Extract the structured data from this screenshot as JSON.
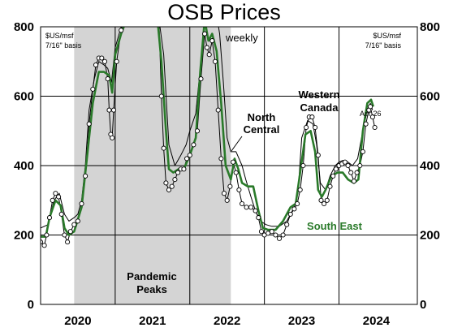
{
  "chart_data": {
    "type": "line",
    "title": "OSB Prices",
    "unit_left": [
      "$US/msf",
      "7/16\" basis"
    ],
    "unit_right": [
      "$US/msf",
      "7/16\" basis"
    ],
    "frequency_label": "weekly",
    "ylim": [
      0,
      800
    ],
    "y_ticks": [
      "0",
      "200",
      "400",
      "600",
      "800"
    ],
    "xlim": [
      2019.5,
      2024.55
    ],
    "x_ticks": [
      {
        "label": "2020",
        "pos": 2020.0
      },
      {
        "label": "2021",
        "pos": 2021.0
      },
      {
        "label": "2022",
        "pos": 2022.0
      },
      {
        "label": "2023",
        "pos": 2023.0
      },
      {
        "label": "2024",
        "pos": 2024.0
      }
    ],
    "year_boundaries": [
      2020.5,
      2021.5,
      2022.5,
      2023.5
    ],
    "shaded_region": {
      "from": 2019.95,
      "to": 2022.05,
      "label": [
        "Pandemic",
        "Peaks"
      ]
    },
    "annotations": {
      "western_canada": [
        "Western",
        "Canada"
      ],
      "north_central": [
        "North",
        "Central"
      ],
      "south_east": "South East",
      "apr26": "Apr 26"
    },
    "series": [
      {
        "name": "North Central",
        "color": "#000000",
        "points": [
          [
            2019.5,
            220
          ],
          [
            2019.6,
            230
          ],
          [
            2019.68,
            300
          ],
          [
            2019.75,
            320
          ],
          [
            2019.82,
            260
          ],
          [
            2019.88,
            240
          ],
          [
            2019.95,
            250
          ],
          [
            2020.0,
            260
          ],
          [
            2020.05,
            300
          ],
          [
            2020.1,
            400
          ],
          [
            2020.15,
            560
          ],
          [
            2020.22,
            650
          ],
          [
            2020.28,
            700
          ],
          [
            2020.35,
            690
          ],
          [
            2020.4,
            680
          ],
          [
            2020.45,
            640
          ],
          [
            2020.5,
            740
          ],
          [
            2020.58,
            800
          ],
          [
            2020.65,
            830
          ],
          [
            2020.72,
            870
          ],
          [
            2020.8,
            900
          ],
          [
            2021.05,
            880
          ],
          [
            2021.15,
            720
          ],
          [
            2021.22,
            460
          ],
          [
            2021.3,
            400
          ],
          [
            2021.38,
            430
          ],
          [
            2021.45,
            460
          ],
          [
            2021.5,
            500
          ],
          [
            2021.58,
            550
          ],
          [
            2021.65,
            700
          ],
          [
            2021.72,
            840
          ],
          [
            2021.78,
            800
          ],
          [
            2021.84,
            860
          ],
          [
            2021.9,
            780
          ],
          [
            2021.95,
            640
          ],
          [
            2022.0,
            480
          ],
          [
            2022.05,
            440
          ],
          [
            2022.12,
            440
          ],
          [
            2022.2,
            400
          ],
          [
            2022.25,
            360
          ],
          [
            2022.32,
            310
          ],
          [
            2022.38,
            270
          ],
          [
            2022.45,
            240
          ],
          [
            2022.52,
            230
          ],
          [
            2022.6,
            225
          ],
          [
            2022.7,
            225
          ],
          [
            2022.8,
            240
          ],
          [
            2022.9,
            280
          ],
          [
            2022.95,
            320
          ],
          [
            2023.0,
            480
          ],
          [
            2023.08,
            530
          ],
          [
            2023.15,
            520
          ],
          [
            2023.2,
            460
          ],
          [
            2023.25,
            350
          ],
          [
            2023.32,
            330
          ],
          [
            2023.38,
            370
          ],
          [
            2023.45,
            400
          ],
          [
            2023.5,
            410
          ],
          [
            2023.55,
            415
          ],
          [
            2023.62,
            410
          ],
          [
            2023.68,
            400
          ],
          [
            2023.75,
            420
          ],
          [
            2023.82,
            500
          ],
          [
            2023.88,
            560
          ],
          [
            2023.92,
            580
          ],
          [
            2023.95,
            560
          ]
        ]
      },
      {
        "name": "South East",
        "color": "#2a7a2a",
        "points": [
          [
            2019.5,
            195
          ],
          [
            2019.57,
            195
          ],
          [
            2019.62,
            250
          ],
          [
            2019.7,
            300
          ],
          [
            2019.77,
            285
          ],
          [
            2019.82,
            220
          ],
          [
            2019.88,
            200
          ],
          [
            2019.95,
            210
          ],
          [
            2020.05,
            280
          ],
          [
            2020.12,
            420
          ],
          [
            2020.2,
            580
          ],
          [
            2020.28,
            670
          ],
          [
            2020.35,
            670
          ],
          [
            2020.42,
            660
          ],
          [
            2020.46,
            610
          ],
          [
            2020.5,
            720
          ],
          [
            2020.58,
            780
          ],
          [
            2020.65,
            820
          ],
          [
            2020.72,
            860
          ],
          [
            2020.8,
            880
          ],
          [
            2021.05,
            860
          ],
          [
            2021.12,
            700
          ],
          [
            2021.18,
            500
          ],
          [
            2021.22,
            390
          ],
          [
            2021.28,
            380
          ],
          [
            2021.35,
            390
          ],
          [
            2021.42,
            390
          ],
          [
            2021.5,
            430
          ],
          [
            2021.58,
            480
          ],
          [
            2021.64,
            670
          ],
          [
            2021.7,
            820
          ],
          [
            2021.75,
            760
          ],
          [
            2021.8,
            780
          ],
          [
            2021.86,
            730
          ],
          [
            2021.92,
            580
          ],
          [
            2021.98,
            400
          ],
          [
            2022.05,
            360
          ],
          [
            2022.1,
            420
          ],
          [
            2022.15,
            390
          ],
          [
            2022.2,
            350
          ],
          [
            2022.28,
            340
          ],
          [
            2022.35,
            340
          ],
          [
            2022.42,
            270
          ],
          [
            2022.48,
            220
          ],
          [
            2022.55,
            215
          ],
          [
            2022.65,
            215
          ],
          [
            2022.75,
            240
          ],
          [
            2022.85,
            280
          ],
          [
            2022.92,
            290
          ],
          [
            2022.98,
            380
          ],
          [
            2023.05,
            490
          ],
          [
            2023.12,
            500
          ],
          [
            2023.18,
            440
          ],
          [
            2023.22,
            330
          ],
          [
            2023.27,
            310
          ],
          [
            2023.32,
            330
          ],
          [
            2023.4,
            370
          ],
          [
            2023.48,
            380
          ],
          [
            2023.55,
            380
          ],
          [
            2023.62,
            360
          ],
          [
            2023.7,
            350
          ],
          [
            2023.76,
            360
          ],
          [
            2023.82,
            500
          ],
          [
            2023.88,
            580
          ],
          [
            2023.93,
            590
          ],
          [
            2023.96,
            570
          ]
        ]
      },
      {
        "name": "Western Canada",
        "color": "#000000",
        "marker": "circle",
        "points": [
          [
            2019.5,
            180
          ],
          [
            2019.55,
            170
          ],
          [
            2019.58,
            200
          ],
          [
            2019.62,
            250
          ],
          [
            2019.66,
            300
          ],
          [
            2019.7,
            320
          ],
          [
            2019.74,
            310
          ],
          [
            2019.78,
            260
          ],
          [
            2019.82,
            200
          ],
          [
            2019.86,
            180
          ],
          [
            2019.9,
            210
          ],
          [
            2019.95,
            230
          ],
          [
            2020.0,
            240
          ],
          [
            2020.05,
            290
          ],
          [
            2020.1,
            370
          ],
          [
            2020.15,
            520
          ],
          [
            2020.2,
            620
          ],
          [
            2020.24,
            690
          ],
          [
            2020.28,
            710
          ],
          [
            2020.32,
            710
          ],
          [
            2020.36,
            700
          ],
          [
            2020.4,
            650
          ],
          [
            2020.42,
            560
          ],
          [
            2020.44,
            490
          ],
          [
            2020.46,
            480
          ],
          [
            2020.48,
            560
          ],
          [
            2020.52,
            700
          ],
          [
            2020.58,
            790
          ],
          [
            2020.65,
            850
          ],
          [
            2021.08,
            860
          ],
          [
            2021.12,
            600
          ],
          [
            2021.15,
            450
          ],
          [
            2021.18,
            350
          ],
          [
            2021.22,
            330
          ],
          [
            2021.26,
            340
          ],
          [
            2021.3,
            360
          ],
          [
            2021.34,
            380
          ],
          [
            2021.38,
            390
          ],
          [
            2021.42,
            390
          ],
          [
            2021.46,
            420
          ],
          [
            2021.5,
            430
          ],
          [
            2021.55,
            460
          ],
          [
            2021.6,
            500
          ],
          [
            2021.65,
            650
          ],
          [
            2021.7,
            780
          ],
          [
            2021.73,
            740
          ],
          [
            2021.76,
            720
          ],
          [
            2021.8,
            760
          ],
          [
            2021.84,
            700
          ],
          [
            2021.88,
            560
          ],
          [
            2021.92,
            420
          ],
          [
            2021.96,
            320
          ],
          [
            2022.0,
            300
          ],
          [
            2022.04,
            340
          ],
          [
            2022.08,
            410
          ],
          [
            2022.12,
            380
          ],
          [
            2022.16,
            330
          ],
          [
            2022.2,
            290
          ],
          [
            2022.26,
            280
          ],
          [
            2022.32,
            280
          ],
          [
            2022.38,
            270
          ],
          [
            2022.42,
            250
          ],
          [
            2022.46,
            210
          ],
          [
            2022.5,
            200
          ],
          [
            2022.55,
            205
          ],
          [
            2022.6,
            210
          ],
          [
            2022.65,
            200
          ],
          [
            2022.7,
            190
          ],
          [
            2022.75,
            200
          ],
          [
            2022.8,
            230
          ],
          [
            2022.85,
            260
          ],
          [
            2022.9,
            275
          ],
          [
            2022.94,
            290
          ],
          [
            2022.98,
            330
          ],
          [
            2023.02,
            400
          ],
          [
            2023.06,
            510
          ],
          [
            2023.1,
            540
          ],
          [
            2023.14,
            540
          ],
          [
            2023.18,
            510
          ],
          [
            2023.22,
            430
          ],
          [
            2023.26,
            300
          ],
          [
            2023.3,
            290
          ],
          [
            2023.34,
            300
          ],
          [
            2023.38,
            340
          ],
          [
            2023.42,
            370
          ],
          [
            2023.46,
            390
          ],
          [
            2023.5,
            400
          ],
          [
            2023.54,
            405
          ],
          [
            2023.58,
            410
          ],
          [
            2023.62,
            400
          ],
          [
            2023.66,
            380
          ],
          [
            2023.7,
            355
          ],
          [
            2023.74,
            380
          ],
          [
            2023.78,
            400
          ],
          [
            2023.82,
            440
          ],
          [
            2023.86,
            520
          ],
          [
            2023.9,
            560
          ],
          [
            2023.92,
            570
          ],
          [
            2023.95,
            540
          ],
          [
            2023.98,
            510
          ]
        ]
      }
    ]
  }
}
